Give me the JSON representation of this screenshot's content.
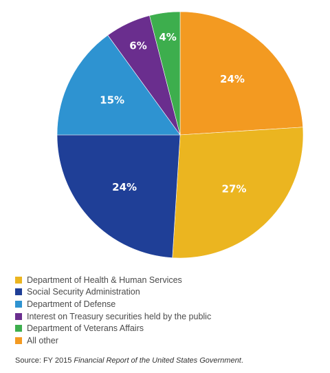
{
  "chart_data": {
    "type": "pie",
    "slices": [
      {
        "label": "All other",
        "value": 24,
        "value_label": "24%",
        "color": "#F39A21"
      },
      {
        "label": "Department of Health & Human Services",
        "value": 27,
        "value_label": "27%",
        "color": "#EBB520"
      },
      {
        "label": "Social Security Administration",
        "value": 24,
        "value_label": "24%",
        "color": "#1F3F97"
      },
      {
        "label": "Department of Defense",
        "value": 15,
        "value_label": "15%",
        "color": "#2E93D1"
      },
      {
        "label": "Interest on Treasury securities held by the public",
        "value": 6,
        "value_label": "6%",
        "color": "#6A2E8E"
      },
      {
        "label": "Department of Veterans Affairs",
        "value": 4,
        "value_label": "4%",
        "color": "#3DAE4D"
      }
    ],
    "legend": {
      "placement": "bottom-left",
      "items": [
        {
          "label": "Department of Health & Human Services",
          "color": "#EBB520"
        },
        {
          "label": "Social Security Administration",
          "color": "#1F3F97"
        },
        {
          "label": "Department of Defense",
          "color": "#2E93D1"
        },
        {
          "label": "Interest on Treasury securities held by the public",
          "color": "#6A2E8E"
        },
        {
          "label": "Department of Veterans Affairs",
          "color": "#3DAE4D"
        },
        {
          "label": "All other",
          "color": "#F39A21"
        }
      ]
    },
    "title": "",
    "start_angle": "12 o'clock",
    "direction": "clockwise"
  },
  "source": {
    "prefix": "Source: FY 2015 ",
    "title": "Financial Report of the United States Government",
    "suffix": "."
  }
}
